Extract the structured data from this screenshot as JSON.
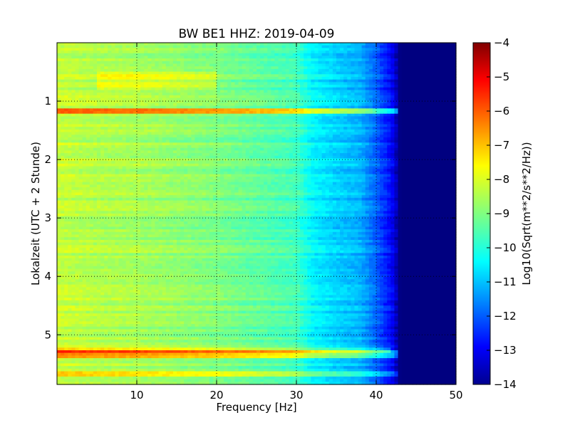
{
  "chart_data": {
    "type": "heatmap",
    "title": "BW BE1 HHZ: 2019-04-09",
    "xlabel": "Frequency [Hz]",
    "ylabel": "Lokalzeit (UTC + 2 Stunde)",
    "colorbar_label": "Log10(Sqrt(m**2/s**2/Hz))",
    "xlim": [
      0,
      50
    ],
    "ylim": [
      5.85,
      0.0
    ],
    "y_inverted": true,
    "x_ticks": [
      10,
      20,
      30,
      40,
      50
    ],
    "x_tick_labels": [
      "10",
      "20",
      "30",
      "40",
      "50"
    ],
    "y_ticks": [
      1,
      2,
      3,
      4,
      5
    ],
    "y_tick_labels": [
      "1",
      "2",
      "3",
      "4",
      "5"
    ],
    "colorbar_ticks": [
      -4,
      -5,
      -6,
      -7,
      -8,
      -9,
      -10,
      -11,
      -12,
      -13,
      -14
    ],
    "colorbar_tick_labels": [
      "−4",
      "−5",
      "−6",
      "−7",
      "−8",
      "−9",
      "−10",
      "−11",
      "−12",
      "−13",
      "−14"
    ],
    "clim": [
      -14,
      -4
    ],
    "colormap": "jet",
    "grid": true,
    "frequency_profile": {
      "frequency_hz": [
        0,
        5,
        10,
        15,
        20,
        25,
        30,
        32,
        35,
        38,
        40,
        42,
        43,
        44,
        50
      ],
      "log10_psd": [
        -8.3,
        -8.5,
        -8.6,
        -8.8,
        -9.0,
        -9.3,
        -9.6,
        -10.3,
        -10.7,
        -11.0,
        -11.8,
        -12.8,
        -14.0,
        -14.0,
        -14.0
      ]
    },
    "bands": [
      {
        "time_h": 0.65,
        "width_h": 0.3,
        "freq_range_hz": [
          5,
          20
        ],
        "offset": 0.6
      },
      {
        "time_h": 1.16,
        "width_h": 0.05,
        "freq_range_hz": [
          0,
          44
        ],
        "offset": 2.0
      },
      {
        "time_h": 5.25,
        "width_h": 0.06,
        "freq_range_hz": [
          0,
          42
        ],
        "offset": 0.9
      },
      {
        "time_h": 5.33,
        "width_h": 0.05,
        "freq_range_hz": [
          0,
          45
        ],
        "offset": 1.8
      },
      {
        "time_h": 5.68,
        "width_h": 0.07,
        "freq_range_hz": [
          0,
          44
        ],
        "offset": 1.0
      }
    ]
  }
}
